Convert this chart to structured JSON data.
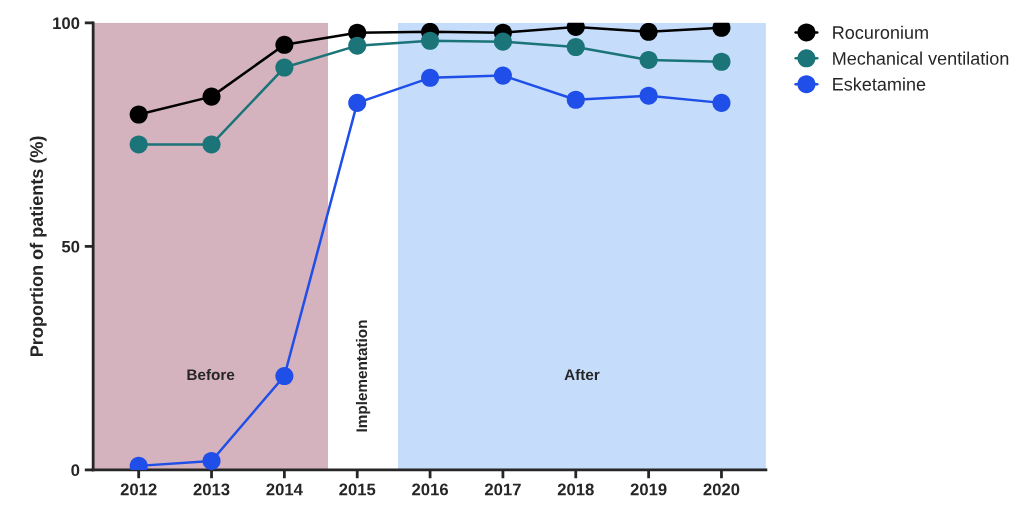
{
  "chart_data": {
    "type": "line",
    "ylabel": "Proportion of patients (%)",
    "x": [
      2012,
      2013,
      2014,
      2015,
      2016,
      2017,
      2018,
      2019,
      2020
    ],
    "xlim": [
      2011.375,
      2020.61
    ],
    "xticks": [
      2012,
      2013,
      2014,
      2015,
      2016,
      2017,
      2018,
      2019,
      2020
    ],
    "ylim": [
      0,
      100
    ],
    "yticks": [
      0,
      50,
      100
    ],
    "grid": false,
    "legend": "top right",
    "marker": "circle",
    "line_style": "solid",
    "series": [
      {
        "name": "Rocuronium",
        "color": "#000000",
        "values": [
          79.5,
          83.5,
          95.1,
          97.8,
          98.0,
          97.8,
          99.1,
          98.0,
          98.9
        ]
      },
      {
        "name": "Mechanical ventilation",
        "color": "#1a7478",
        "values": [
          72.8,
          72.8,
          90.0,
          94.9,
          96.0,
          95.8,
          94.6,
          91.7,
          91.3
        ]
      },
      {
        "name": "Esketamine",
        "color": "#1f4fe8",
        "values": [
          0.9,
          2.0,
          21.0,
          82.1,
          87.7,
          88.2,
          82.8,
          83.7,
          82.1
        ]
      }
    ],
    "bands": [
      {
        "axis": "x",
        "from": 2011.375,
        "to": 2014.6,
        "label": "Before",
        "color": "#d4b2be"
      },
      {
        "axis": "x",
        "from": 2014.6,
        "to": 2015.56,
        "label": "Implementation",
        "color": "#ffffff"
      },
      {
        "axis": "x",
        "from": 2015.56,
        "to": 2020.61,
        "label": "After",
        "color": "#c5dcfb"
      }
    ]
  }
}
